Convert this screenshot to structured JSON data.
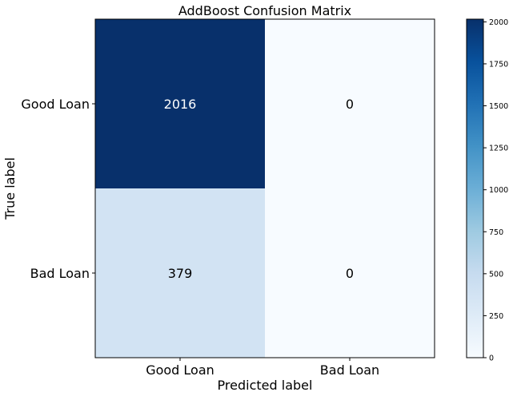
{
  "chart_data": {
    "type": "heatmap",
    "title": "AddBoost Confusion Matrix",
    "xlabel": "Predicted label",
    "ylabel": "True label",
    "x_categories": [
      "Good Loan",
      "Bad Loan"
    ],
    "y_categories": [
      "Good Loan",
      "Bad Loan"
    ],
    "values": [
      [
        2016,
        0
      ],
      [
        379,
        0
      ]
    ],
    "colormap": "Blues",
    "colorbar": {
      "min": 0,
      "max": 2016,
      "ticks": [
        0,
        250,
        500,
        750,
        1000,
        1250,
        1500,
        1750,
        2000
      ]
    },
    "grid": false
  }
}
